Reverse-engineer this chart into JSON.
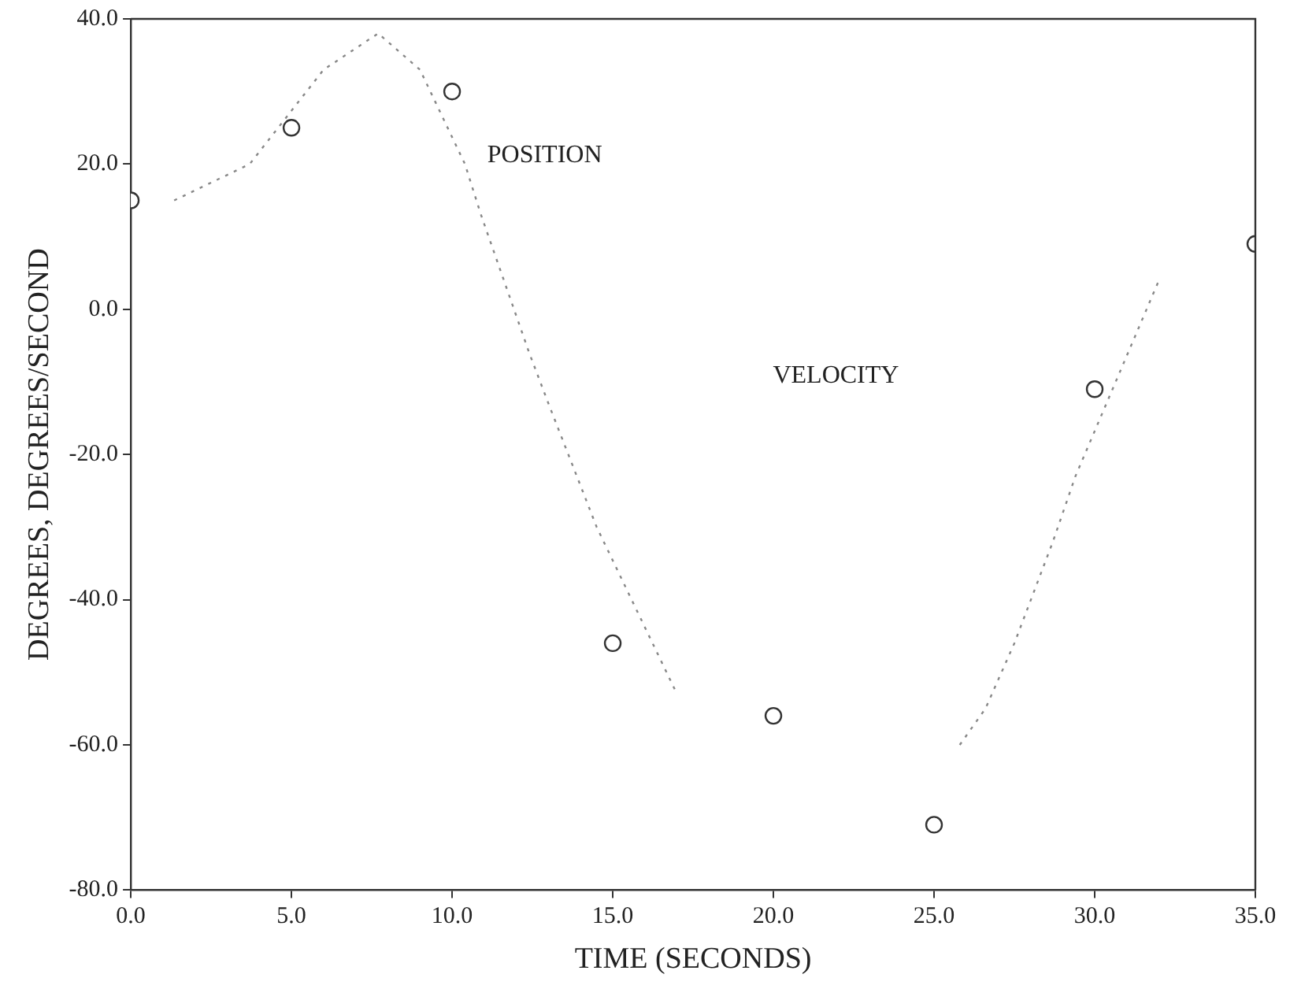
{
  "chart_data": {
    "type": "scatter",
    "xlabel": "TIME (SECONDS)",
    "ylabel": "DEGREES, DEGREES/SECOND",
    "xlim": [
      0,
      35
    ],
    "ylim": [
      -80,
      40
    ],
    "xticks": [
      {
        "value": 0,
        "label": "0.0"
      },
      {
        "value": 5,
        "label": "5.0"
      },
      {
        "value": 10,
        "label": "10.0"
      },
      {
        "value": 15,
        "label": "15.0"
      },
      {
        "value": 20,
        "label": "20.0"
      },
      {
        "value": 25,
        "label": "25.0"
      },
      {
        "value": 30,
        "label": "30.0"
      },
      {
        "value": 35,
        "label": "35.0"
      }
    ],
    "yticks": [
      {
        "value": 40,
        "label": "40.0"
      },
      {
        "value": 20,
        "label": "20.0"
      },
      {
        "value": 0,
        "label": "0.0"
      },
      {
        "value": -20,
        "label": "-20.0"
      },
      {
        "value": -40,
        "label": "-40.0"
      },
      {
        "value": -60,
        "label": "-60.0"
      },
      {
        "value": -80,
        "label": "-80.0"
      }
    ],
    "grid": false,
    "legend": false,
    "series": [
      {
        "type": "scatter",
        "marker": "circle",
        "color": "#333333",
        "x": [
          0,
          5,
          10,
          15,
          20,
          25,
          30,
          35
        ],
        "values": [
          15,
          25,
          30,
          -46,
          -56,
          -71,
          -11,
          9
        ]
      },
      {
        "type": "line",
        "marker": "none",
        "line_style": "dotted",
        "color": "#888888",
        "x": [
          1.35,
          3.7,
          6.0,
          7.7,
          9.0,
          10.4,
          10.9,
          12.4,
          13.0,
          14.5,
          17.0,
          21.5,
          25.8,
          26.6,
          27.5,
          28.1,
          28.7,
          29.4,
          32.0
        ],
        "values": [
          15,
          20,
          33,
          38,
          33,
          20,
          13,
          -6,
          -13,
          -30,
          -53,
          null,
          -60,
          -55,
          -46,
          -39,
          -32,
          -23,
          4
        ]
      }
    ],
    "annotations": [
      "POSITION",
      "VELOCITY"
    ]
  }
}
